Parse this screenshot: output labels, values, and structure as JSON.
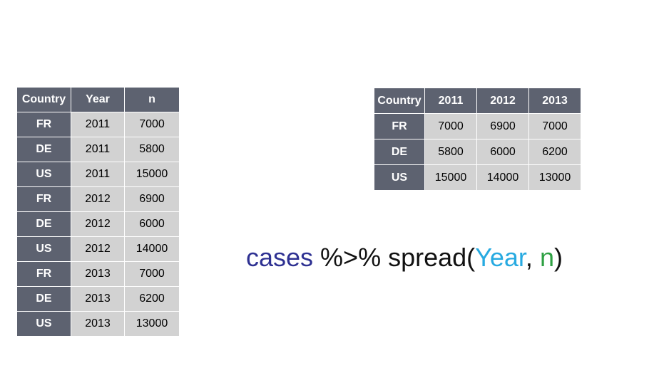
{
  "long_table": {
    "headers": [
      "Country",
      "Year",
      "n"
    ],
    "rows": [
      [
        "FR",
        "2011",
        "7000"
      ],
      [
        "DE",
        "2011",
        "5800"
      ],
      [
        "US",
        "2011",
        "15000"
      ],
      [
        "FR",
        "2012",
        "6900"
      ],
      [
        "DE",
        "2012",
        "6000"
      ],
      [
        "US",
        "2012",
        "14000"
      ],
      [
        "FR",
        "2013",
        "7000"
      ],
      [
        "DE",
        "2013",
        "6200"
      ],
      [
        "US",
        "2013",
        "13000"
      ]
    ]
  },
  "wide_table": {
    "headers": [
      "Country",
      "2011",
      "2012",
      "2013"
    ],
    "rows": [
      [
        "FR",
        "7000",
        "6900",
        "7000"
      ],
      [
        "DE",
        "5800",
        "6000",
        "6200"
      ],
      [
        "US",
        "15000",
        "14000",
        "13000"
      ]
    ]
  },
  "code": {
    "segments": [
      {
        "text": "cases",
        "color": "#2e3192"
      },
      {
        "text": " %>% spread(",
        "color": "#111111"
      },
      {
        "text": "Year",
        "color": "#27aae1"
      },
      {
        "text": ", ",
        "color": "#111111"
      },
      {
        "text": "n",
        "color": "#2ea043"
      },
      {
        "text": ")",
        "color": "#111111"
      }
    ]
  },
  "colors": {
    "header_bg": "#5d6270",
    "cell_bg": "#d2d2d2",
    "border": "#ffffff"
  }
}
